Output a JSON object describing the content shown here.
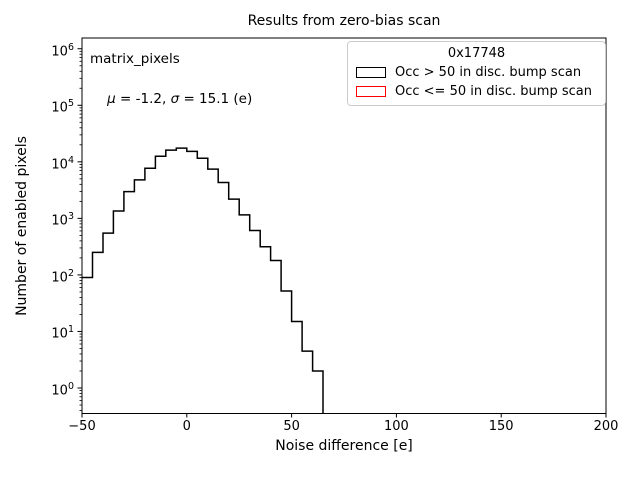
{
  "chart_data": {
    "type": "step-histogram",
    "title": "Results from zero-bias scan",
    "xlabel": "Noise difference [e]",
    "ylabel": "Number of enabled pixels",
    "x_scale": "linear",
    "y_scale": "log",
    "xlim": [
      -50,
      200
    ],
    "ylim": [
      0.35,
      1550000
    ],
    "grid": false,
    "x_ticks": [
      -50,
      0,
      50,
      100,
      150,
      200
    ],
    "x_tick_labels": [
      "−50",
      "0",
      "50",
      "100",
      "150",
      "200"
    ],
    "y_axis_base": "10",
    "y_tick_exponents": [
      0,
      1,
      2,
      3,
      4,
      5,
      6
    ],
    "annotation": {
      "line1": "matrix_pixels",
      "mu_symbol": "μ",
      "mu_rest": " = -1.2, ",
      "sigma_symbol": "σ",
      "sigma_rest": " = 15.1 (e)",
      "mu": -1.2,
      "sigma": 15.1,
      "unit": "e"
    },
    "legend": {
      "title": "0x17748",
      "position": "upper right",
      "border_color": "#cccccc",
      "entries": [
        {
          "label": "Occ > 50 in disc. bump scan",
          "color": "#000000"
        },
        {
          "label": "Occ <= 50 in disc. bump scan",
          "color": "#ff0000"
        }
      ]
    },
    "series": [
      {
        "name": "Occ > 50 in disc. bump scan",
        "color": "#000000",
        "bin_width": 5,
        "bin_edges": [
          -50,
          -45,
          -40,
          -35,
          -30,
          -25,
          -20,
          -15,
          -10,
          -5,
          0,
          5,
          10,
          15,
          20,
          25,
          30,
          35,
          40,
          45,
          50,
          55,
          60,
          65
        ],
        "counts": [
          90,
          250,
          550,
          1350,
          2980,
          4800,
          7700,
          12500,
          16100,
          17500,
          15300,
          11600,
          7450,
          4310,
          2190,
          1150,
          610,
          316,
          180,
          52,
          15,
          4.5,
          2
        ]
      },
      {
        "name": "Occ <= 50 in disc. bump scan",
        "color": "#ff0000",
        "bin_edges": [],
        "counts": []
      }
    ]
  }
}
